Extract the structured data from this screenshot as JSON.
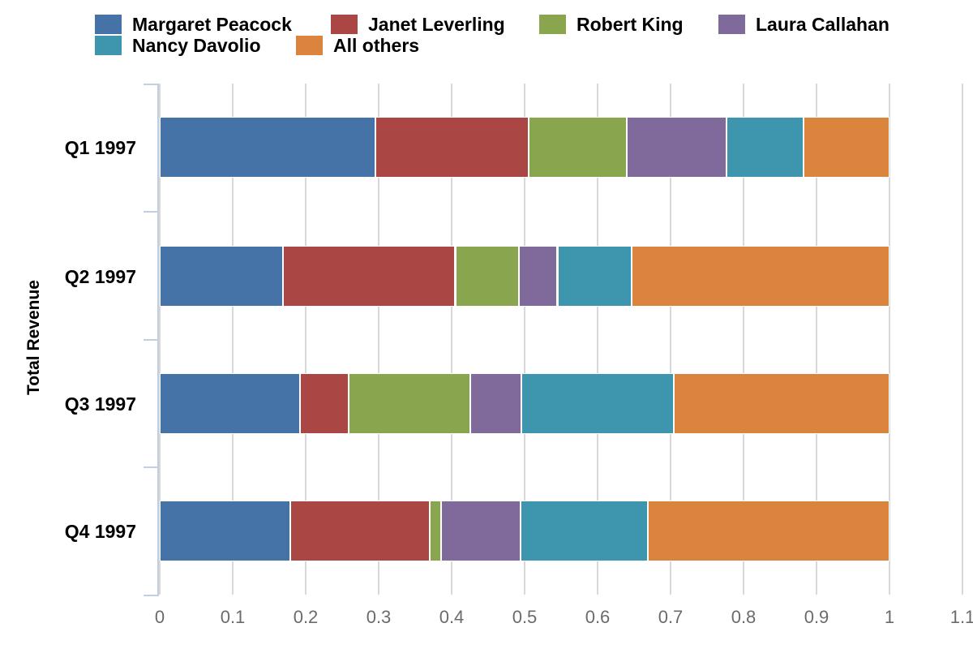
{
  "chart_data": {
    "type": "bar",
    "orientation": "horizontal",
    "stacking": "percent",
    "title": "",
    "xlabel": "",
    "ylabel": "Total Revenue",
    "categories": [
      "Q1 1997",
      "Q2 1997",
      "Q3 1997",
      "Q4 1997"
    ],
    "xlim": [
      0,
      1.1
    ],
    "x_tick_labels": [
      "0",
      "0.1",
      "0.2",
      "0.3",
      "0.4",
      "0.5",
      "0.6",
      "0.7",
      "0.8",
      "0.9",
      "1",
      "1.1"
    ],
    "grid": true,
    "legend_position": "top",
    "series": [
      {
        "name": "Margaret Peacock",
        "color": "#4572A7",
        "values": [
          0.295,
          0.169,
          0.192,
          0.179
        ]
      },
      {
        "name": "Janet Leverling",
        "color": "#AA4643",
        "values": [
          0.21,
          0.236,
          0.067,
          0.191
        ]
      },
      {
        "name": "Robert King",
        "color": "#89A54E",
        "values": [
          0.135,
          0.087,
          0.167,
          0.015
        ]
      },
      {
        "name": "Laura Callahan",
        "color": "#80699B",
        "values": [
          0.137,
          0.053,
          0.07,
          0.109
        ]
      },
      {
        "name": "Nancy Davolio",
        "color": "#3D96AE",
        "values": [
          0.105,
          0.102,
          0.208,
          0.175
        ]
      },
      {
        "name": "All others",
        "color": "#DB843D",
        "values": [
          0.118,
          0.353,
          0.296,
          0.331
        ]
      }
    ],
    "colors": {
      "background": "#FFFFFF",
      "axis_line": "#C0D0E0",
      "grid_line": "#D8D8D8",
      "tick_label": "#6B6B6B",
      "text": "#000000"
    }
  }
}
